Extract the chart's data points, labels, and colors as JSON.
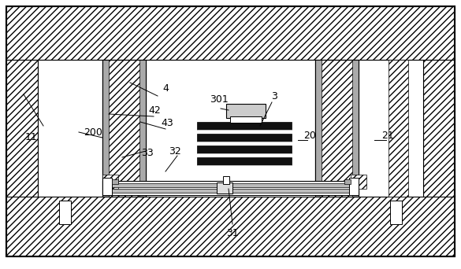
{
  "bg_color": "#ffffff",
  "line_color": "#000000",
  "hatch_gray": "#e8e8e8",
  "light_gray": "#cccccc",
  "dark_strip": "#666666",
  "fin_color": "#111111",
  "figsize": [
    5.85,
    3.42
  ],
  "dpi": 100,
  "label_fs": 9
}
